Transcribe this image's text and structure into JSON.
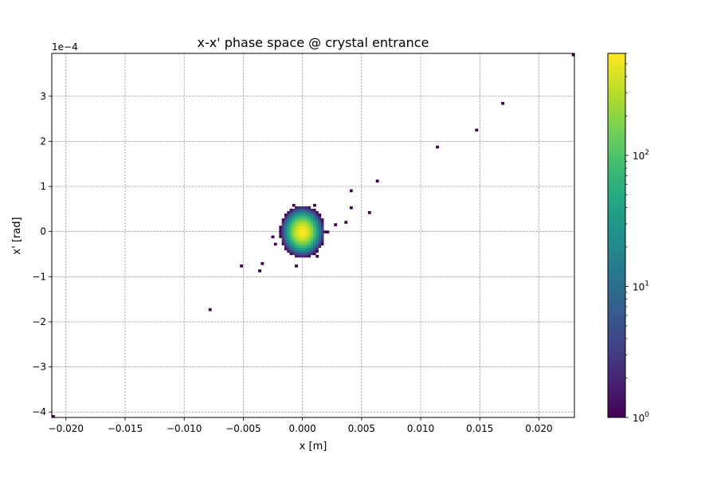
{
  "chart_data": {
    "type": "heatmap",
    "title": "x-x' phase space @ crystal entrance",
    "xlabel": "x [m]",
    "ylabel": "x' [rad]",
    "y_offset_label": "1e−4",
    "xlim": [
      -0.0212,
      0.023
    ],
    "ylim": [
      -4.12,
      3.95
    ],
    "y_unit_scale": "1e-4",
    "grid": true,
    "x_ticks": [
      {
        "value": -0.02,
        "label": "−0.020"
      },
      {
        "value": -0.015,
        "label": "−0.015"
      },
      {
        "value": -0.01,
        "label": "−0.010"
      },
      {
        "value": -0.005,
        "label": "−0.005"
      },
      {
        "value": 0.0,
        "label": "0.000"
      },
      {
        "value": 0.005,
        "label": "0.005"
      },
      {
        "value": 0.01,
        "label": "0.010"
      },
      {
        "value": 0.015,
        "label": "0.015"
      },
      {
        "value": 0.02,
        "label": "0.020"
      }
    ],
    "y_ticks": [
      {
        "value": 3,
        "label": "3"
      },
      {
        "value": 2,
        "label": "2"
      },
      {
        "value": 1,
        "label": "1"
      },
      {
        "value": 0,
        "label": "0"
      },
      {
        "value": -1,
        "label": "−1"
      },
      {
        "value": -2,
        "label": "−2"
      },
      {
        "value": -3,
        "label": "−3"
      },
      {
        "value": -4,
        "label": "−4"
      }
    ],
    "bins": {
      "nx": 200,
      "ny": 150
    },
    "core": {
      "x_center": 0.0,
      "y_center": 0.0,
      "x_halfwidth": 0.0019,
      "y_halfwidth": 0.58,
      "peak_count": 600
    },
    "outliers": [
      [
        0.0229,
        3.94
      ],
      [
        0.017,
        2.86
      ],
      [
        0.0148,
        2.25
      ],
      [
        0.0114,
        1.89
      ],
      [
        0.0064,
        1.12
      ],
      [
        0.0042,
        0.92
      ],
      [
        0.0042,
        0.52
      ],
      [
        0.0057,
        0.4
      ],
      [
        0.0037,
        0.21
      ],
      [
        0.0028,
        0.16
      ],
      [
        -0.0052,
        -0.77
      ],
      [
        -0.0035,
        -0.73
      ],
      [
        -0.0036,
        -0.89
      ],
      [
        -0.0079,
        -1.7
      ],
      [
        -0.021,
        -4.08
      ],
      [
        -0.0025,
        -0.12
      ],
      [
        -0.0023,
        -0.27
      ],
      [
        -0.0007,
        0.6
      ],
      [
        0.001,
        0.6
      ],
      [
        0.0021,
        0.0
      ],
      [
        -0.0006,
        -0.77
      ],
      [
        0.0012,
        -0.55
      ]
    ],
    "colorbar": {
      "scale": "log",
      "vmin": 1,
      "vmax": 600,
      "colormap": "viridis",
      "ticks": [
        {
          "value": 1,
          "base": "10",
          "exp": "0"
        },
        {
          "value": 10,
          "base": "10",
          "exp": "1"
        },
        {
          "value": 100,
          "base": "10",
          "exp": "2"
        }
      ]
    }
  }
}
